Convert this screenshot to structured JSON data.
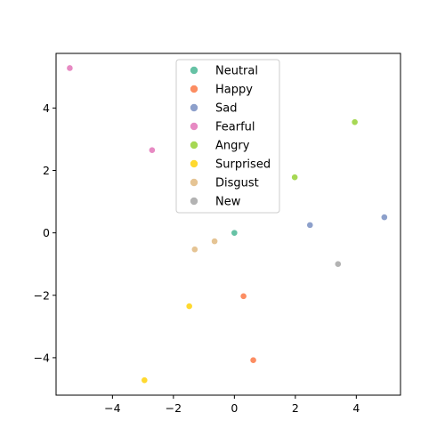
{
  "chart_data": {
    "type": "scatter",
    "xlim": [
      -5.85,
      5.45
    ],
    "ylim": [
      -5.2,
      5.75
    ],
    "xticks": [
      -4,
      -2,
      0,
      2,
      4
    ],
    "yticks": [
      -4,
      -2,
      0,
      2,
      4
    ],
    "xtick_labels": [
      "−4",
      "−2",
      "0",
      "2",
      "4"
    ],
    "ytick_labels": [
      "−4",
      "−2",
      "0",
      "2",
      "4"
    ],
    "grid": false,
    "legend_position": "upper-center",
    "series": [
      {
        "name": "Neutral",
        "color": "#66c2a5",
        "points": [
          [
            0.0,
            0.0
          ]
        ]
      },
      {
        "name": "Happy",
        "color": "#fc8d62",
        "points": [
          [
            0.3,
            -2.03
          ],
          [
            0.62,
            -4.08
          ]
        ]
      },
      {
        "name": "Sad",
        "color": "#8da0cb",
        "points": [
          [
            2.48,
            0.25
          ],
          [
            4.92,
            0.5
          ]
        ]
      },
      {
        "name": "Fearful",
        "color": "#e78ac3",
        "points": [
          [
            -5.4,
            5.28
          ],
          [
            -2.7,
            2.65
          ]
        ]
      },
      {
        "name": "Angry",
        "color": "#a6d854",
        "points": [
          [
            1.98,
            1.78
          ],
          [
            3.95,
            3.55
          ]
        ]
      },
      {
        "name": "Surprised",
        "color": "#ffd92f",
        "points": [
          [
            -1.48,
            -2.35
          ],
          [
            -2.95,
            -4.72
          ]
        ]
      },
      {
        "name": "Disgust",
        "color": "#e5c494",
        "points": [
          [
            -0.65,
            -0.27
          ],
          [
            -1.3,
            -0.53
          ]
        ]
      },
      {
        "name": "New",
        "color": "#b3b3b3",
        "points": [
          [
            3.4,
            -1.0
          ]
        ]
      }
    ]
  }
}
